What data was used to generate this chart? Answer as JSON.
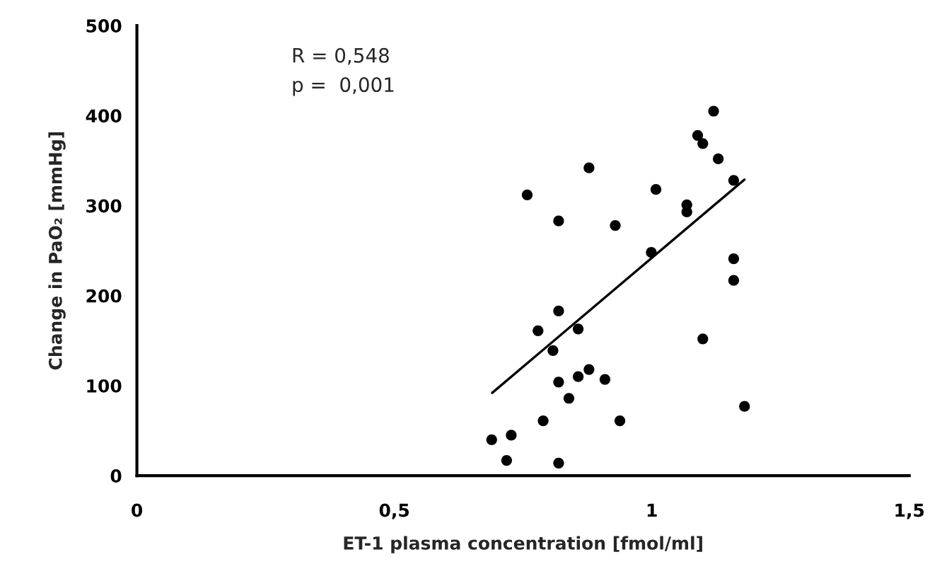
{
  "chart_data": {
    "type": "scatter",
    "xlabel": "ET-1 plasma concentration [fmol/ml]",
    "ylabel": "Change in PaO₂ [mmHg]",
    "annotations": [
      "R = 0,548",
      "p =  0,001"
    ],
    "xlim": [
      0,
      1.5
    ],
    "xticks": [
      0,
      {
        "value": 0.5,
        "label": "0,5"
      },
      1,
      {
        "value": 1.5,
        "label": "1,5"
      }
    ],
    "ylim": [
      0,
      500
    ],
    "yticks": [
      0,
      100,
      200,
      300,
      400,
      500
    ],
    "grid": false,
    "series": [
      {
        "marker": "circle",
        "color": "#000000",
        "x": [
          1.12,
          1.089,
          1.099,
          1.129,
          1.159,
          0.878,
          0.758,
          1.008,
          1.068,
          1.068,
          0.819,
          0.929,
          0.999,
          1.159,
          1.159,
          0.819,
          0.779,
          0.857,
          0.808,
          1.099,
          0.878,
          0.857,
          0.909,
          0.819,
          0.839,
          0.789,
          0.938,
          0.727,
          0.689,
          0.718,
          0.819,
          1.18
        ],
        "values": [
          405,
          378,
          369,
          352,
          328,
          342,
          312,
          318,
          301,
          293,
          283,
          278,
          248,
          241,
          217,
          183,
          161,
          163,
          139,
          152,
          118,
          110,
          107,
          104,
          86,
          61,
          61,
          45,
          40,
          17,
          14,
          77
        ]
      },
      {
        "type": "line",
        "color": "#000000",
        "x": [
          0.69,
          1.18
        ],
        "values": [
          92,
          329
        ]
      }
    ]
  }
}
